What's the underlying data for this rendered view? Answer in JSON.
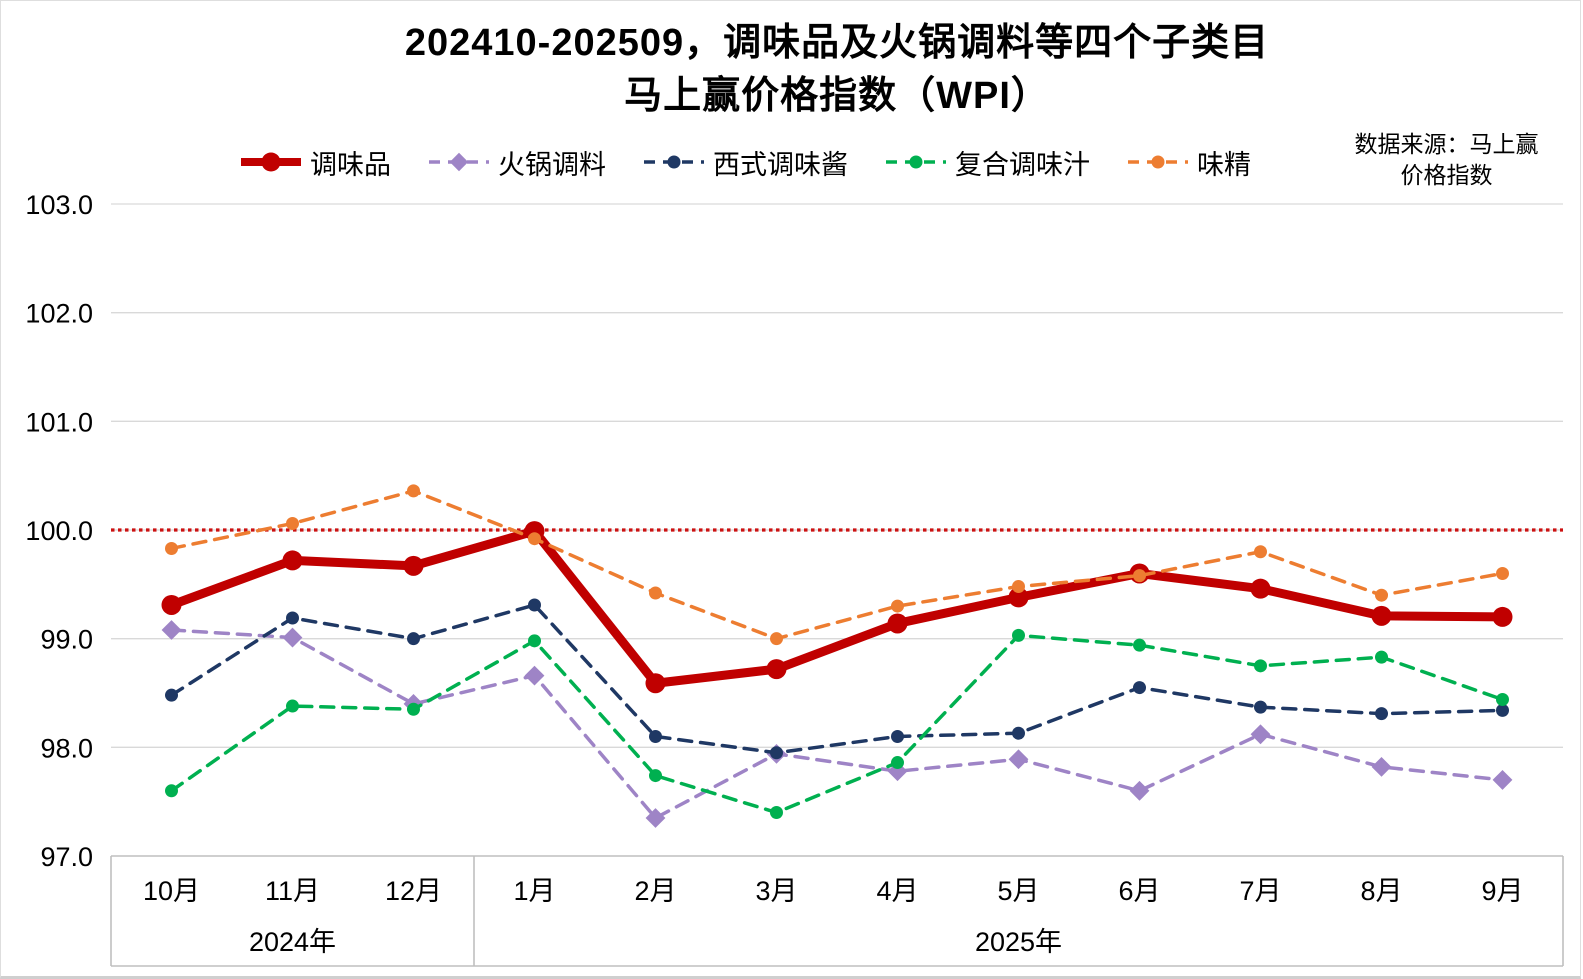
{
  "source": {
    "line1": "数据来源：马上赢",
    "line2": "价格指数"
  },
  "chart_data": {
    "type": "line",
    "title": "202410-202509，调味品及火锅调料等四个子类目",
    "subtitle": "马上赢价格指数（WPI）",
    "xlabel": "",
    "ylabel": "",
    "categories": [
      "10月",
      "11月",
      "12月",
      "1月",
      "2月",
      "3月",
      "4月",
      "5月",
      "6月",
      "7月",
      "8月",
      "9月"
    ],
    "x_groups": [
      {
        "label": "2024年",
        "span": 3
      },
      {
        "label": "2025年",
        "span": 9
      }
    ],
    "ylim": [
      97.0,
      103.0
    ],
    "y_tick_step": 1.0,
    "y_tick_labels": [
      "97.0",
      "98.0",
      "99.0",
      "100.0",
      "101.0",
      "102.0",
      "103.0"
    ],
    "grid": true,
    "legend_position": "top",
    "reference_line": {
      "value": 100.0,
      "color": "#cc1111",
      "style": "dotted"
    },
    "grid_color": "#d9d9d9",
    "axis_table_color": "#bfbfbf",
    "series": [
      {
        "name": "调味品",
        "color": "#c00000",
        "line": "solid",
        "stroke_width": 9,
        "marker": "circle",
        "marker_size": 10,
        "values": [
          99.31,
          99.72,
          99.67,
          99.99,
          98.59,
          98.72,
          99.14,
          99.38,
          99.6,
          99.46,
          99.21,
          99.2
        ]
      },
      {
        "name": "火锅调料",
        "color": "#9e84c6",
        "line": "dashed",
        "stroke_width": 3.5,
        "marker": "diamond",
        "marker_size": 7,
        "values": [
          99.08,
          99.01,
          98.4,
          98.66,
          97.35,
          97.94,
          97.78,
          97.89,
          97.6,
          98.12,
          97.82,
          97.7
        ]
      },
      {
        "name": "西式调味酱",
        "color": "#1f3864",
        "line": "dashed",
        "stroke_width": 3.5,
        "marker": "circle",
        "marker_size": 6.5,
        "values": [
          98.48,
          99.19,
          99.0,
          99.31,
          98.1,
          97.95,
          98.1,
          98.13,
          98.55,
          98.37,
          98.31,
          98.34
        ]
      },
      {
        "name": "复合调味汁",
        "color": "#00b050",
        "line": "dashed",
        "stroke_width": 3.5,
        "marker": "circle",
        "marker_size": 6.5,
        "values": [
          97.6,
          98.38,
          98.35,
          98.98,
          97.74,
          97.4,
          97.86,
          99.03,
          98.94,
          98.75,
          98.83,
          98.44
        ]
      },
      {
        "name": "味精",
        "color": "#ed7d31",
        "line": "dashed",
        "stroke_width": 3.5,
        "marker": "circle",
        "marker_size": 6.5,
        "values": [
          99.83,
          100.06,
          100.36,
          99.92,
          99.42,
          99.0,
          99.3,
          99.48,
          99.58,
          99.8,
          99.4,
          99.6
        ]
      }
    ]
  }
}
